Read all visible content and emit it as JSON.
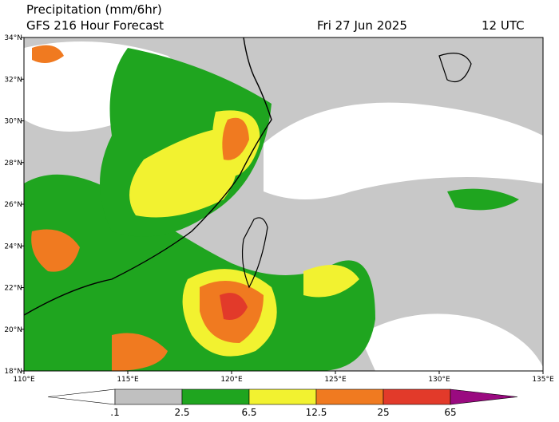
{
  "header": {
    "title": "Precipitation (mm/6hr)",
    "subtitle": "GFS 216 Hour Forecast",
    "date": "Fri 27 Jun 2025",
    "time": "12 UTC"
  },
  "map": {
    "xlim": [
      110,
      135
    ],
    "ylim": [
      18,
      34
    ],
    "xticks": [
      {
        "value": 110,
        "label": "110°E"
      },
      {
        "value": 115,
        "label": "115°E"
      },
      {
        "value": 120,
        "label": "120°E"
      },
      {
        "value": 125,
        "label": "125°E"
      },
      {
        "value": 130,
        "label": "130°E"
      },
      {
        "value": 135,
        "label": "135°E"
      }
    ],
    "yticks": [
      {
        "value": 18,
        "label": "18°N"
      },
      {
        "value": 20,
        "label": "20°N"
      },
      {
        "value": 22,
        "label": "22°N"
      },
      {
        "value": 24,
        "label": "24°N"
      },
      {
        "value": 26,
        "label": "26°N"
      },
      {
        "value": 28,
        "label": "28°N"
      },
      {
        "value": 30,
        "label": "30°N"
      },
      {
        "value": 32,
        "label": "32°N"
      },
      {
        "value": 34,
        "label": "34°N"
      }
    ]
  },
  "legend": {
    "levels": [
      {
        "value": 0.1,
        "label": ".1"
      },
      2.5,
      6.5,
      12.5,
      25,
      65
    ],
    "colors": [
      "#ffffff",
      "#c0c0c0",
      "#1fa51f",
      "#f2f230",
      "#f07a20",
      "#e23a2a",
      "#9a0a80"
    ]
  }
}
